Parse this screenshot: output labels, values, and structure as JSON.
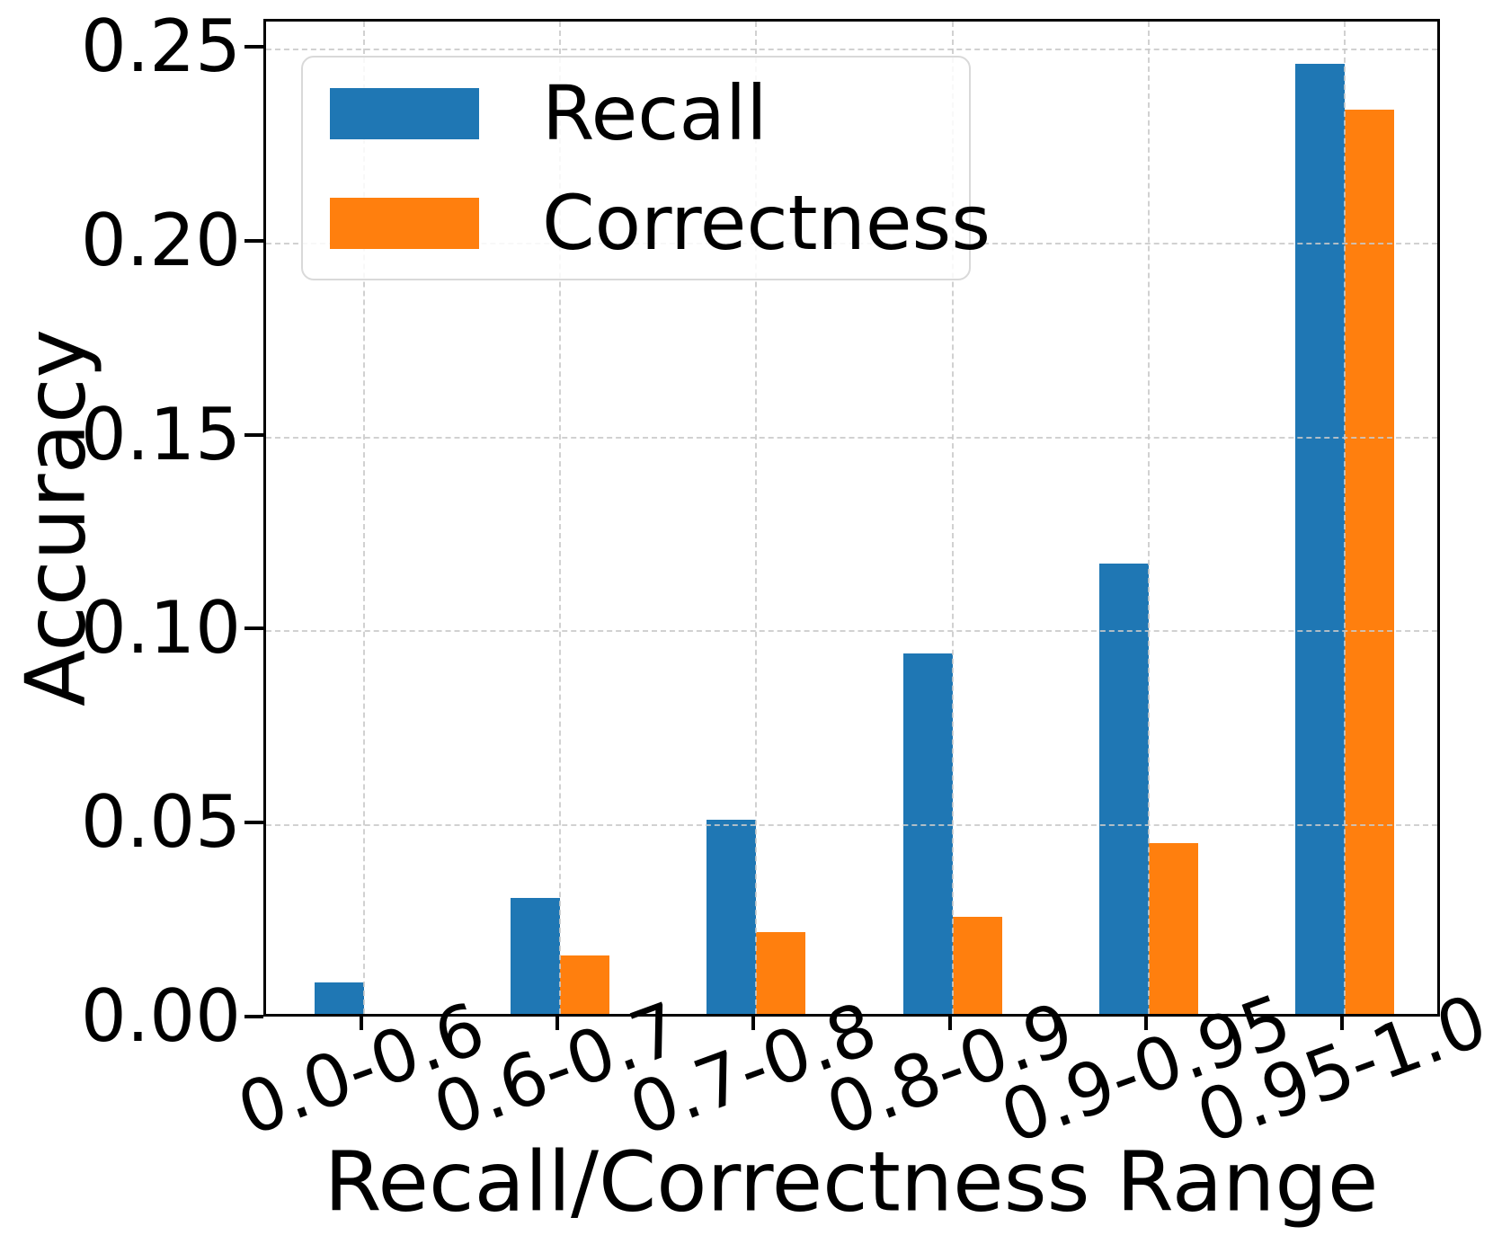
{
  "chart_data": {
    "type": "bar",
    "title": "",
    "xlabel": "Recall/Correctness Range",
    "ylabel": "Accuracy",
    "categories": [
      "0.0-0.6",
      "0.6-0.7",
      "0.7-0.8",
      "0.8-0.9",
      "0.9-0.95",
      "0.95-1.0"
    ],
    "series": [
      {
        "name": "Recall",
        "color": "#1f77b4",
        "values": [
          0.008,
          0.03,
          0.05,
          0.093,
          0.116,
          0.245
        ]
      },
      {
        "name": "Correctness",
        "color": "#ff7f0e",
        "values": [
          0.0,
          0.015,
          0.021,
          0.025,
          0.044,
          0.233
        ]
      }
    ],
    "ylim": [
      0,
      0.2572
    ],
    "ytick_labels": [
      "0.00",
      "0.05",
      "0.10",
      "0.15",
      "0.20",
      "0.25"
    ],
    "ytick_values": [
      0.0,
      0.05,
      0.1,
      0.15,
      0.2,
      0.25
    ],
    "grid": "dashed, both axes, drawn over bars",
    "grid_color": "#c9c9c9",
    "legend_position": "upper-left",
    "xtick_rotation_deg": 20,
    "axis_color": "#000000",
    "background_color": "#ffffff"
  }
}
